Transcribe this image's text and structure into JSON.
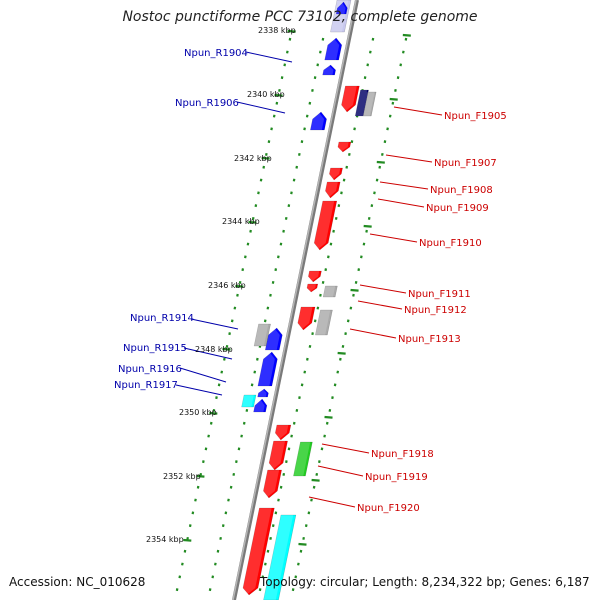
{
  "title": "Nostoc punctiforme PCC 73102, complete genome",
  "accession": "Accession: NC_010628",
  "topology": "Topology: circular; Length: 8,234,322 bp; Genes: 6,187",
  "colors": {
    "forward_gene": "#ff0000",
    "reverse_gene": "#0000ff",
    "rna_gene": "#00ffff",
    "pseudo_gene": "#aaaaaa",
    "green_gene": "#22cc22",
    "navy_gene": "#000066",
    "label_forward": "#cc0000",
    "label_reverse": "#0000aa",
    "tick_dots": "#228b22",
    "backbone": "#888888"
  },
  "scale_ticks": [
    {
      "label": "2338 kbp"
    },
    {
      "label": "2340 kbp"
    },
    {
      "label": "2342 kbp"
    },
    {
      "label": "2344 kbp"
    },
    {
      "label": "2346 kbp"
    },
    {
      "label": "2348 kbp"
    },
    {
      "label": "2350 kbp"
    },
    {
      "label": "2352 kbp"
    },
    {
      "label": "2354 kbp"
    }
  ],
  "gene_labels": [
    {
      "name": "Npun_R1904",
      "strand": "reverse"
    },
    {
      "name": "Npun_R1906",
      "strand": "reverse"
    },
    {
      "name": "Npun_F1905",
      "strand": "forward"
    },
    {
      "name": "Npun_F1907",
      "strand": "forward"
    },
    {
      "name": "Npun_F1908",
      "strand": "forward"
    },
    {
      "name": "Npun_F1909",
      "strand": "forward"
    },
    {
      "name": "Npun_F1910",
      "strand": "forward"
    },
    {
      "name": "Npun_F1911",
      "strand": "forward"
    },
    {
      "name": "Npun_F1912",
      "strand": "forward"
    },
    {
      "name": "Npun_F1913",
      "strand": "forward"
    },
    {
      "name": "Npun_R1914",
      "strand": "reverse"
    },
    {
      "name": "Npun_R1915",
      "strand": "reverse"
    },
    {
      "name": "Npun_R1916",
      "strand": "reverse"
    },
    {
      "name": "Npun_R1917",
      "strand": "reverse"
    },
    {
      "name": "Npun_F1918",
      "strand": "forward"
    },
    {
      "name": "Npun_F1919",
      "strand": "forward"
    },
    {
      "name": "Npun_F1920",
      "strand": "forward"
    }
  ]
}
